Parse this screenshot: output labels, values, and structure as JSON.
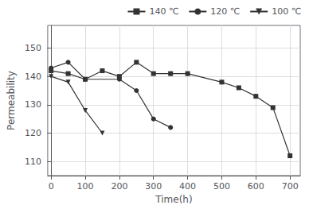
{
  "chart_data": {
    "type": "line",
    "xlabel": "Time(h)",
    "ylabel": "Permeability",
    "xlim": [
      -10,
      730
    ],
    "ylim": [
      105,
      158
    ],
    "xticks": [
      0,
      100,
      200,
      300,
      400,
      500,
      600,
      700
    ],
    "yticks": [
      110,
      120,
      130,
      140,
      150
    ],
    "grid": true,
    "legend": "upper right",
    "series": [
      {
        "name": "140 ℃",
        "color": "#333333",
        "marker": "square",
        "x": [
          0,
          50,
          100,
          150,
          200,
          250,
          300,
          350,
          400,
          500,
          550,
          600,
          650,
          700
        ],
        "values": [
          142,
          141,
          139,
          142,
          140,
          145,
          141,
          141,
          141,
          138,
          136,
          133,
          129,
          112
        ]
      },
      {
        "name": "120 ℃",
        "color": "#333333",
        "marker": "circle",
        "x": [
          0,
          50,
          100,
          200,
          250,
          300,
          350
        ],
        "values": [
          143,
          145,
          139,
          139,
          135,
          125,
          122
        ]
      },
      {
        "name": "100 ℃",
        "color": "#333333",
        "marker": "triangle-down",
        "x": [
          0,
          50,
          100,
          150
        ],
        "values": [
          140,
          138,
          128,
          120
        ]
      }
    ]
  }
}
